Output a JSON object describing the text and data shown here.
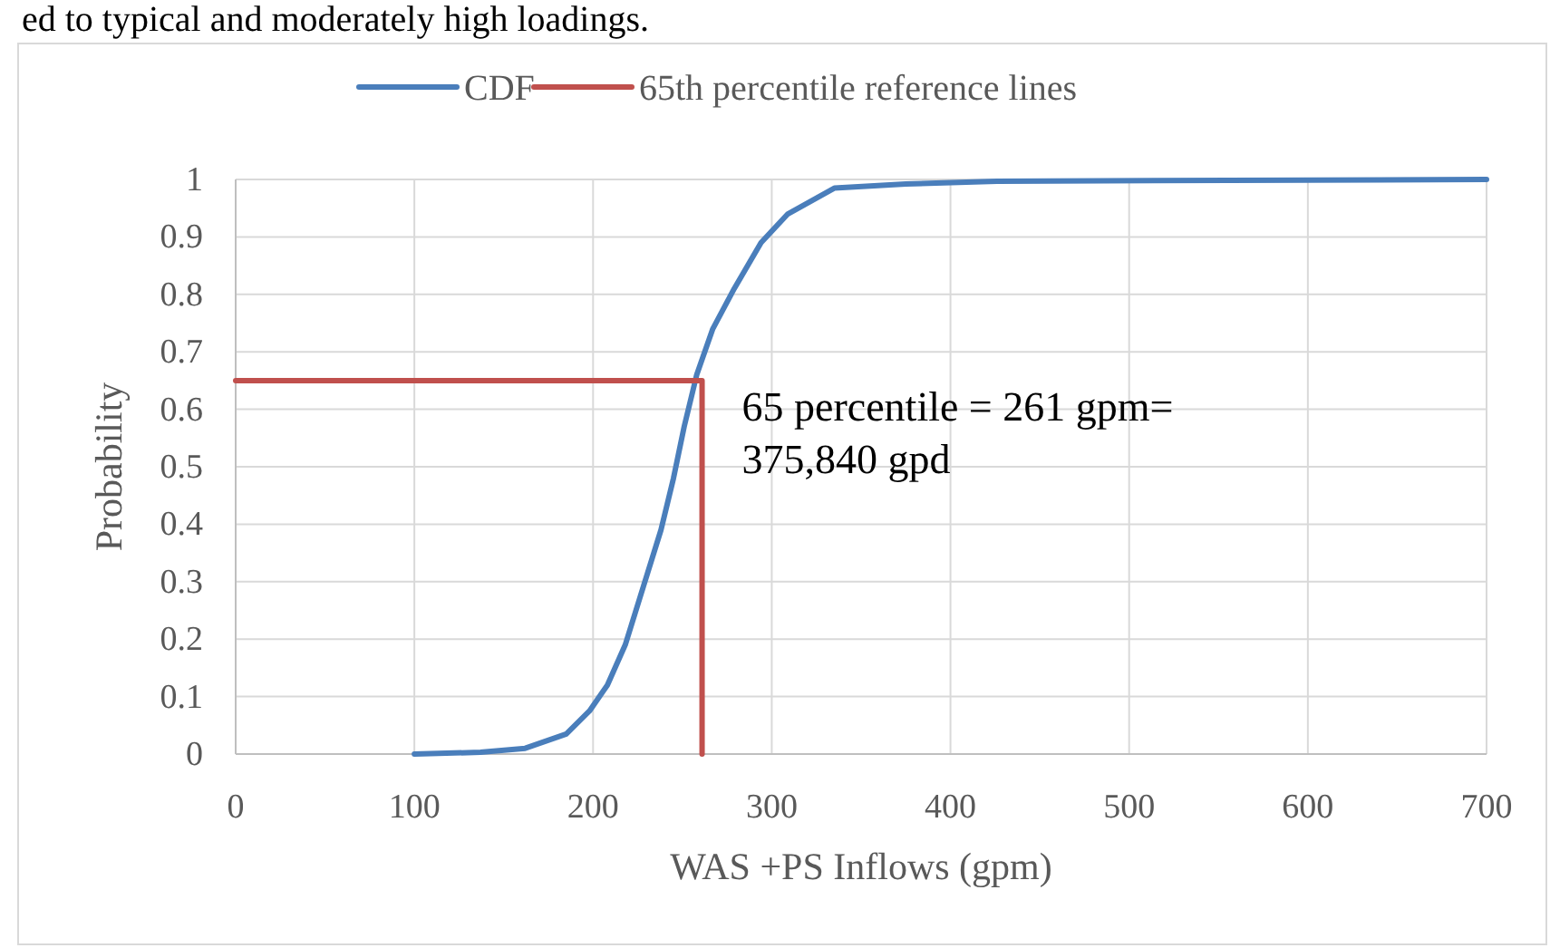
{
  "chart_data": {
    "type": "line",
    "xlabel": "WAS +PS Inflows (gpm)",
    "ylabel": "Probability",
    "xlim": [
      0,
      700
    ],
    "xticks": [
      0,
      100,
      200,
      300,
      400,
      500,
      600,
      700
    ],
    "ylim": [
      0,
      1
    ],
    "yticks": [
      0,
      0.1,
      0.2,
      0.3,
      0.4,
      0.5,
      0.6,
      0.7,
      0.8,
      0.9,
      1
    ],
    "grid": true,
    "legend": "top",
    "line_style": "solid",
    "marker": "none",
    "series": [
      {
        "name": "CDF",
        "color": "#4a7ebb",
        "x": [
          100,
          137,
          162,
          185,
          198,
          208,
          218,
          228,
          238,
          245,
          251,
          258,
          267,
          279,
          294,
          309,
          335,
          375,
          426,
          700
        ],
        "values": [
          0,
          0.003,
          0.01,
          0.035,
          0.075,
          0.12,
          0.19,
          0.29,
          0.39,
          0.48,
          0.57,
          0.66,
          0.74,
          0.81,
          0.89,
          0.94,
          0.985,
          0.992,
          0.997,
          1
        ]
      },
      {
        "name": "65th percentile reference lines",
        "color": "#c0504d",
        "x": [
          0,
          261,
          261
        ],
        "values": [
          0.65,
          0.65,
          0
        ]
      }
    ],
    "annotations": [
      "ed to typical and moderately high loadings.",
      {
        "text": "65 percentile = 261 gpm=\n375,840 gpd",
        "x": 261,
        "y": 0.65
      }
    ]
  }
}
